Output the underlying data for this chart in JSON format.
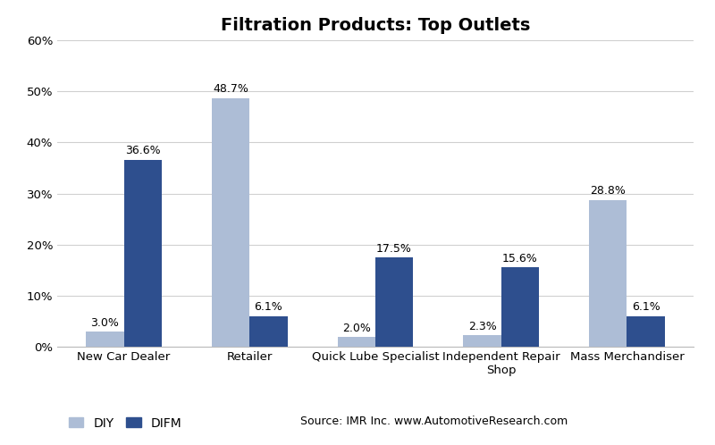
{
  "title": "Filtration Products: Top Outlets",
  "categories": [
    "New Car Dealer",
    "Retailer",
    "Quick Lube Specialist",
    "Independent Repair\nShop",
    "Mass Merchandiser"
  ],
  "diy_values": [
    3.0,
    48.7,
    2.0,
    2.3,
    28.8
  ],
  "difm_values": [
    36.6,
    6.1,
    17.5,
    15.6,
    6.1
  ],
  "diy_color": "#adbdd6",
  "difm_color": "#2e4f8e",
  "ylim": [
    0,
    60
  ],
  "yticks": [
    0,
    10,
    20,
    30,
    40,
    50,
    60
  ],
  "bar_width": 0.3,
  "title_fontsize": 14,
  "tick_fontsize": 9.5,
  "label_fontsize": 9,
  "source_text": "Source: IMR Inc. www.AutomotiveResearch.com",
  "background_color": "#ffffff",
  "grid_color": "#d0d0d0"
}
